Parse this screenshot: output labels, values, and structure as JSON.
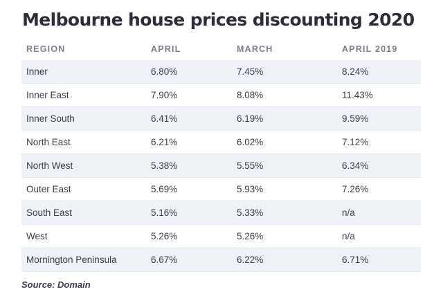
{
  "title": "Melbourne house prices discounting 2020",
  "table": {
    "headers": [
      "REGION",
      "APRIL",
      "MARCH",
      "APRIL 2019"
    ],
    "rows": [
      [
        "Inner",
        "6.80%",
        "7.45%",
        "8.24%"
      ],
      [
        "Inner East",
        "7.90%",
        "8.08%",
        "11.43%"
      ],
      [
        "Inner South",
        "6.41%",
        "6.19%",
        "9.59%"
      ],
      [
        "North East",
        "6.21%",
        "6.02%",
        "7.12%"
      ],
      [
        "North West",
        "5.38%",
        "5.55%",
        "6.34%"
      ],
      [
        "Outer East",
        "5.69%",
        "5.93%",
        "7.26%"
      ],
      [
        "South East",
        "5.16%",
        "5.33%",
        "n/a"
      ],
      [
        "West",
        "5.26%",
        "5.26%",
        "n/a"
      ],
      [
        "Mornington Peninsula",
        "6.67%",
        "6.22%",
        "6.71%"
      ]
    ]
  },
  "source": "Source: Domain",
  "colors": {
    "title": "#2b2d3a",
    "header_text": "#7b7f8c",
    "row_stripe": "#eef1f5",
    "body_text": "#3a3d4a"
  }
}
